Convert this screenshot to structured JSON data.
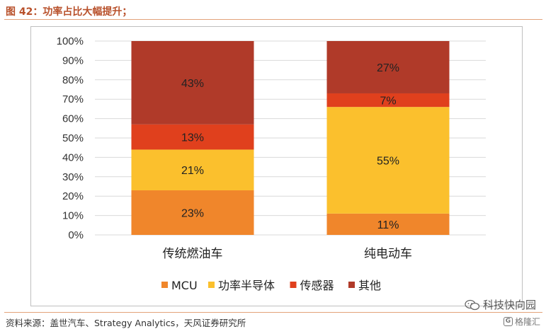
{
  "figure_title": "图 42：功率占比大幅提升；",
  "source_note": "资料来源：盖世汽车、Strategy Analytics，天风证券研究所",
  "watermark_text": "科技快向园",
  "watermark_sub": "格隆汇",
  "colors": {
    "MCU": "#f0862b",
    "功率半导体": "#fbc02d",
    "传感器": "#e0401d",
    "其他": "#b03a29",
    "title": "#b8502a",
    "grid": "#d9d9d9"
  },
  "chart_data": {
    "type": "bar",
    "stacked": true,
    "title": "",
    "xlabel": "",
    "ylabel": "",
    "ylim": [
      0,
      100
    ],
    "yticks": [
      "0%",
      "10%",
      "20%",
      "30%",
      "40%",
      "50%",
      "60%",
      "70%",
      "80%",
      "90%",
      "100%"
    ],
    "categories": [
      "传统燃油车",
      "纯电动车"
    ],
    "series": [
      {
        "name": "MCU",
        "values": [
          23,
          11
        ]
      },
      {
        "name": "功率半导体",
        "values": [
          21,
          55
        ]
      },
      {
        "name": "传感器",
        "values": [
          13,
          7
        ]
      },
      {
        "name": "其他",
        "values": [
          43,
          27
        ]
      }
    ],
    "legend": [
      "MCU",
      "功率半导体",
      "传感器",
      "其他"
    ],
    "legend_position": "bottom",
    "grid": true
  }
}
